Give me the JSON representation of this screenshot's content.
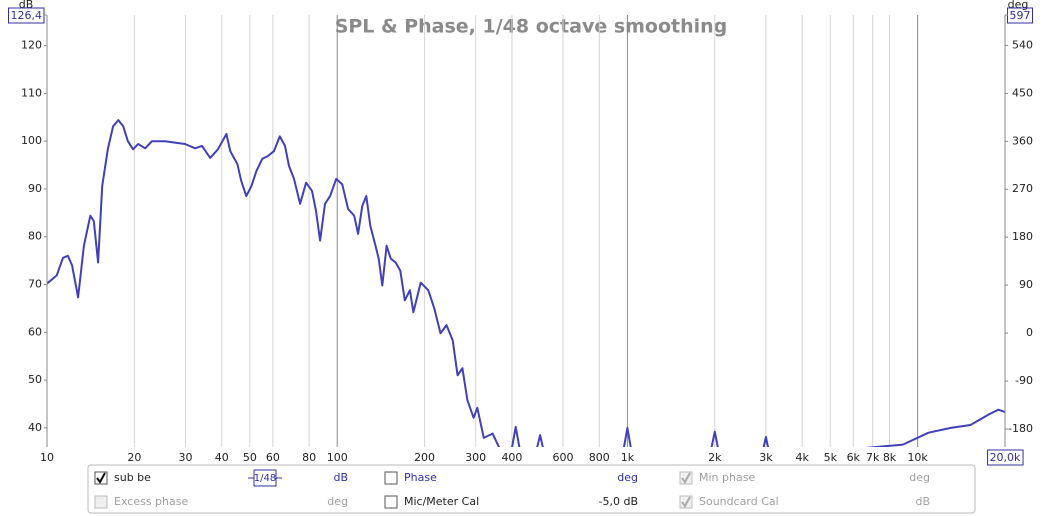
{
  "chart_data": {
    "type": "line",
    "title": "SPL & Phase, 1/48 octave smoothing",
    "y_axis_label": "dB",
    "y2_axis_label": "deg",
    "x_log": true,
    "grid": true,
    "xlim": [
      10,
      20000
    ],
    "xticks": [
      10,
      20,
      30,
      40,
      50,
      60,
      80,
      100,
      200,
      300,
      400,
      600,
      800,
      {
        "value": 1000,
        "label": "1k"
      },
      {
        "value": 2000,
        "label": "2k"
      },
      {
        "value": 3000,
        "label": "3k"
      },
      {
        "value": 4000,
        "label": "4k"
      },
      {
        "value": 5000,
        "label": "5k"
      },
      {
        "value": 6000,
        "label": "6k"
      },
      {
        "value": 7000,
        "label": "7k"
      },
      {
        "value": 8000,
        "label": "8k"
      },
      {
        "value": 10000,
        "label": "10k"
      },
      {
        "value": 20000,
        "label": "20,0k"
      }
    ],
    "ylim": [
      36,
      126.4
    ],
    "yticks": [
      40,
      50,
      60,
      70,
      80,
      90,
      100,
      110,
      120,
      {
        "value": 126.4,
        "label": "126,4"
      }
    ],
    "y2lim": [
      -213.75,
      597
    ],
    "y2ticks": [
      -180,
      -90,
      0,
      90,
      180,
      270,
      360,
      450,
      540,
      597
    ],
    "x": [
      10,
      10.8,
      11.35,
      11.8,
      12.2,
      12.8,
      13.4,
      14.1,
      14.5,
      15,
      15.5,
      16.2,
      16.9,
      17.6,
      18.3,
      19,
      19.8,
      20.6,
      21.8,
      23,
      25.5,
      29.9,
      32.4,
      34.2,
      36.5,
      38.8,
      41.5,
      42.8,
      45.3,
      46.7,
      48.6,
      50.6,
      52.7,
      55.2,
      57.7,
      60.5,
      63.4,
      66.1,
      68.2,
      71,
      74.5,
      78.1,
      81.9,
      84.5,
      87.3,
      90.8,
      94.5,
      99.2,
      104,
      109,
      114.4,
      118,
      122,
      126,
      130,
      135.5,
      139,
      143,
      148,
      153,
      159,
      165,
      171,
      178,
      183,
      194,
      206,
      216,
      227,
      238,
      250,
      260,
      270,
      281,
      295,
      304,
      320,
      343,
      358,
      375,
      395,
      412,
      430,
      480,
      500,
      520,
      960,
      1000,
      1040,
      1920,
      2000,
      2080,
      2900,
      3000,
      3100,
      8900,
      10900,
      13000,
      15200,
      17700,
      19000,
      20000
    ],
    "series": [
      {
        "name": "sub be",
        "color": "#4040b8",
        "values": [
          70.2,
          71.9,
          75.6,
          76,
          74,
          67.3,
          78.1,
          84.4,
          83.3,
          74.6,
          90.6,
          98.3,
          103.1,
          104.4,
          103.1,
          100,
          98.3,
          99.4,
          98.5,
          100,
          100,
          99.4,
          98.5,
          99,
          96.5,
          98.3,
          101.5,
          97.9,
          95.2,
          91.7,
          88.5,
          90.6,
          93.8,
          96.3,
          96.9,
          97.9,
          101,
          99,
          94.8,
          92.1,
          86.9,
          91.3,
          89.6,
          85.4,
          79.2,
          86.9,
          88.5,
          92.1,
          91,
          85.8,
          84.4,
          80.6,
          86.5,
          88.5,
          82.3,
          78.1,
          75.4,
          69.8,
          78.1,
          75.4,
          74.6,
          72.9,
          66.7,
          68.8,
          64.2,
          70.4,
          68.8,
          65,
          59.8,
          61.5,
          58.3,
          51,
          52.5,
          45.8,
          42.1,
          44.2,
          37.9,
          38.8,
          36.4,
          34,
          34,
          40.2,
          34,
          34,
          38.5,
          34,
          34,
          40,
          34,
          34,
          39.2,
          34,
          34,
          38.1,
          34,
          36.5,
          39,
          40,
          40.6,
          42.9,
          43.8,
          43.3
        ]
      }
    ]
  },
  "controls": [
    {
      "label": "sub be",
      "checked": true,
      "enabled": true,
      "smoothing": "1/48",
      "unit": "dB"
    },
    {
      "label": "Phase",
      "checked": false,
      "enabled": true,
      "unit": "deg"
    },
    {
      "label": "Min phase",
      "checked": true,
      "enabled": false,
      "unit": "deg"
    },
    {
      "label": "Excess phase",
      "checked": false,
      "enabled": false,
      "unit": "deg"
    },
    {
      "label": "Mic/Meter Cal",
      "checked": false,
      "enabled": true,
      "unit": "-5,0 dB"
    },
    {
      "label": "Soundcard Cal",
      "checked": true,
      "enabled": false,
      "unit": "dB"
    }
  ]
}
